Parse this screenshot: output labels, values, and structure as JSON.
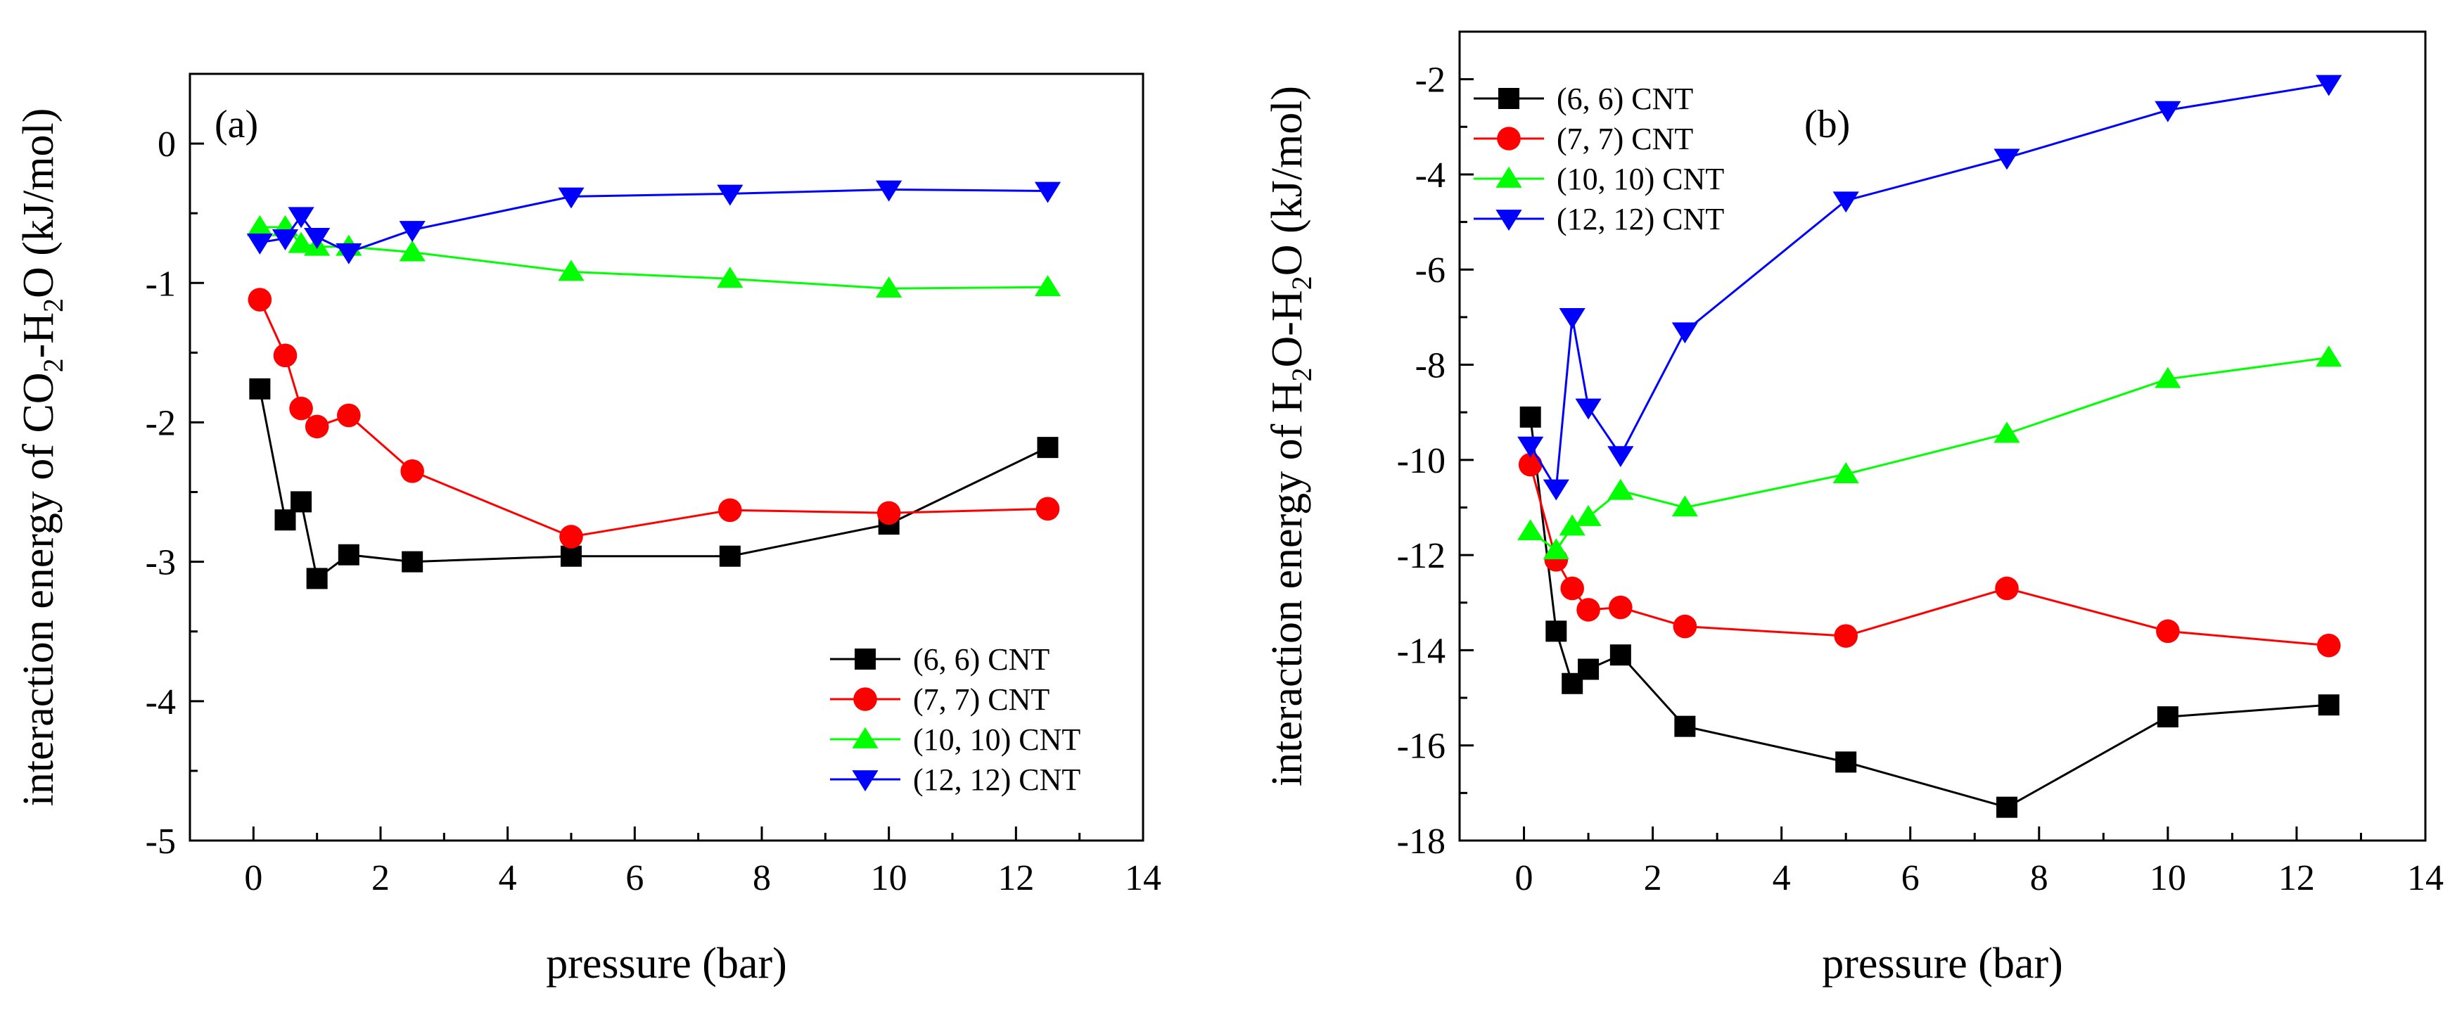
{
  "chart_data": [
    {
      "type": "line",
      "panel_label": "(a)",
      "title": "",
      "xlabel": "pressure (bar)",
      "ylabel": {
        "pre": "interaction energy of CO",
        "sub1": "2",
        "mid": "-H",
        "sub2": "2",
        "post": "O (kJ/mol)"
      },
      "xlim": [
        -1,
        14
      ],
      "ylim": [
        -5,
        0.5
      ],
      "xticks": [
        0,
        2,
        4,
        6,
        8,
        10,
        12,
        14
      ],
      "yticks": [
        0,
        -1,
        -2,
        -3,
        -4,
        -5
      ],
      "x_tick_labels": [
        "0",
        "2",
        "4",
        "6",
        "8",
        "10",
        "12",
        "14"
      ],
      "y_tick_labels": [
        "0",
        "-1",
        "-2",
        "-3",
        "-4",
        "-5"
      ],
      "legend_position": "bottom-right",
      "series": [
        {
          "name": "(6, 6) CNT",
          "color": "#000000",
          "marker": "square",
          "x": [
            0.1,
            0.5,
            0.75,
            1.0,
            1.5,
            2.5,
            5.0,
            7.5,
            10.0,
            12.5
          ],
          "y": [
            -1.76,
            -2.7,
            -2.57,
            -3.12,
            -2.95,
            -3.0,
            -2.96,
            -2.96,
            -2.73,
            -2.18
          ]
        },
        {
          "name": "(7, 7) CNT",
          "color": "#ff0000",
          "marker": "circle",
          "x": [
            0.1,
            0.5,
            0.75,
            1.0,
            1.5,
            2.5,
            5.0,
            7.5,
            10.0,
            12.5
          ],
          "y": [
            -1.12,
            -1.52,
            -1.9,
            -2.03,
            -1.95,
            -2.35,
            -2.82,
            -2.63,
            -2.65,
            -2.62
          ]
        },
        {
          "name": "(10, 10) CNT",
          "color": "#00ff00",
          "marker": "triangle-up",
          "x": [
            0.1,
            0.5,
            0.75,
            1.0,
            1.5,
            2.5,
            5.0,
            7.5,
            10.0,
            12.5
          ],
          "y": [
            -0.6,
            -0.6,
            -0.72,
            -0.74,
            -0.74,
            -0.78,
            -0.92,
            -0.97,
            -1.04,
            -1.03
          ]
        },
        {
          "name": "(12, 12) CNT",
          "color": "#0000ff",
          "marker": "triangle-down",
          "x": [
            0.1,
            0.5,
            0.75,
            1.0,
            1.5,
            2.5,
            5.0,
            7.5,
            10.0,
            12.5
          ],
          "y": [
            -0.71,
            -0.68,
            -0.52,
            -0.67,
            -0.78,
            -0.62,
            -0.38,
            -0.36,
            -0.33,
            -0.34
          ]
        }
      ]
    },
    {
      "type": "line",
      "panel_label": "(b)",
      "title": "",
      "xlabel": "pressure (bar)",
      "ylabel": {
        "pre": "interaction energy of H",
        "sub1": "2",
        "mid": "O-H",
        "sub2": "2",
        "post": "O (kJ/mol)"
      },
      "xlim": [
        -1,
        14
      ],
      "ylim": [
        -18,
        -1
      ],
      "xticks": [
        0,
        2,
        4,
        6,
        8,
        10,
        12,
        14
      ],
      "yticks": [
        -2,
        -4,
        -6,
        -8,
        -10,
        -12,
        -14,
        -16,
        -18
      ],
      "x_tick_labels": [
        "0",
        "2",
        "4",
        "6",
        "8",
        "10",
        "12",
        "14"
      ],
      "y_tick_labels": [
        "-2",
        "-4",
        "-6",
        "-8",
        "-10",
        "-12",
        "-14",
        "-16",
        "-18"
      ],
      "legend_position": "top-left",
      "series": [
        {
          "name": "(6, 6) CNT",
          "color": "#000000",
          "marker": "square",
          "x": [
            0.1,
            0.5,
            0.75,
            1.0,
            1.5,
            2.5,
            5.0,
            7.5,
            10.0,
            12.5
          ],
          "y": [
            -9.1,
            -13.6,
            -14.7,
            -14.4,
            -14.1,
            -15.6,
            -16.35,
            -17.3,
            -15.4,
            -15.15
          ]
        },
        {
          "name": "(7, 7) CNT",
          "color": "#ff0000",
          "marker": "circle",
          "x": [
            0.1,
            0.5,
            0.75,
            1.0,
            1.5,
            2.5,
            5.0,
            7.5,
            10.0,
            12.5
          ],
          "y": [
            -10.1,
            -12.1,
            -12.7,
            -13.15,
            -13.1,
            -13.5,
            -13.7,
            -12.7,
            -13.6,
            -13.9
          ]
        },
        {
          "name": "(10, 10) CNT",
          "color": "#00ff00",
          "marker": "triangle-up",
          "x": [
            0.1,
            0.5,
            0.75,
            1.0,
            1.5,
            2.5,
            5.0,
            7.5,
            10.0,
            12.5
          ],
          "y": [
            -11.5,
            -11.9,
            -11.4,
            -11.2,
            -10.65,
            -11.0,
            -10.3,
            -9.45,
            -8.3,
            -7.85
          ]
        },
        {
          "name": "(12, 12) CNT",
          "color": "#0000ff",
          "marker": "triangle-down",
          "x": [
            0.1,
            0.5,
            0.75,
            1.0,
            1.5,
            2.5,
            5.0,
            7.5,
            10.0,
            12.5
          ],
          "y": [
            -9.7,
            -10.6,
            -7.0,
            -8.9,
            -9.9,
            -7.3,
            -4.55,
            -3.65,
            -2.65,
            -2.1
          ]
        }
      ]
    }
  ]
}
